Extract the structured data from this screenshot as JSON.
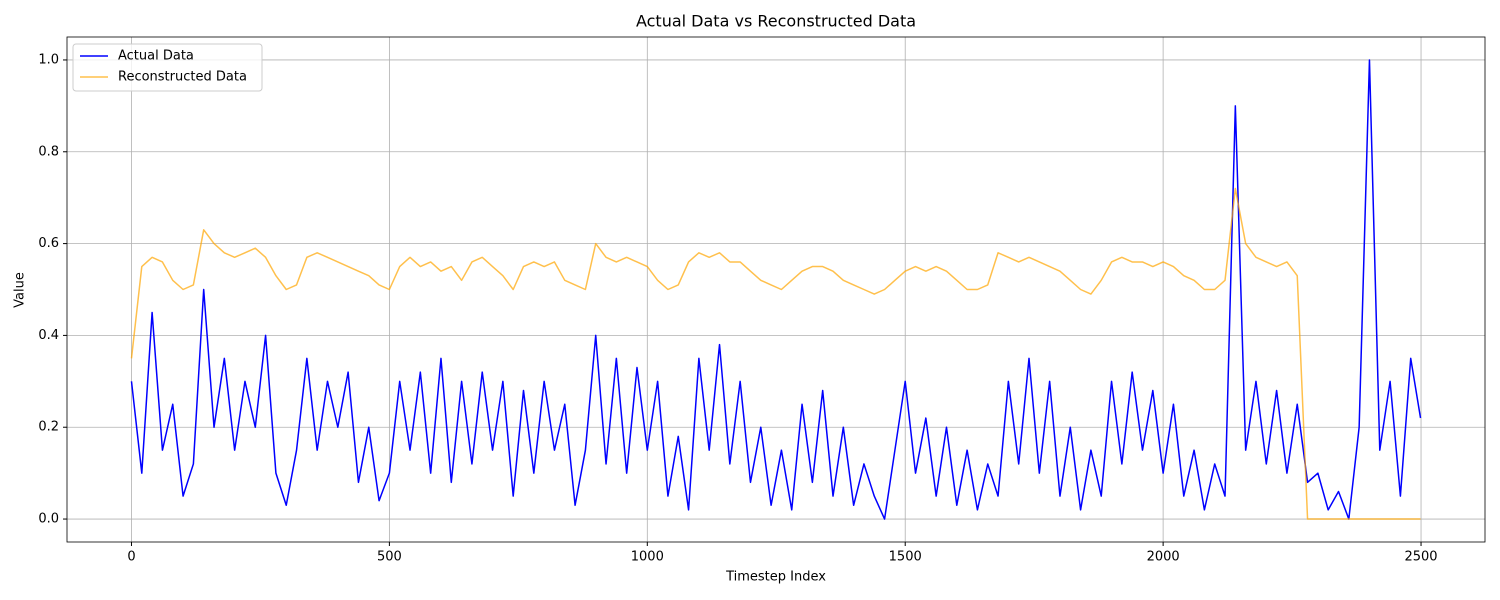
{
  "chart_data": {
    "type": "line",
    "title": "Actual Data vs Reconstructed Data",
    "x_label": "Timestep Index",
    "y_label": "Value",
    "x": [
      0,
      20,
      40,
      60,
      80,
      100,
      120,
      140,
      160,
      180,
      200,
      220,
      240,
      260,
      280,
      300,
      320,
      340,
      360,
      380,
      400,
      420,
      440,
      460,
      480,
      500,
      520,
      540,
      560,
      580,
      600,
      620,
      640,
      660,
      680,
      700,
      720,
      740,
      760,
      780,
      800,
      820,
      840,
      860,
      880,
      900,
      920,
      940,
      960,
      980,
      1000,
      1020,
      1040,
      1060,
      1080,
      1100,
      1120,
      1140,
      1160,
      1180,
      1200,
      1220,
      1240,
      1260,
      1280,
      1300,
      1320,
      1340,
      1360,
      1380,
      1400,
      1420,
      1440,
      1460,
      1480,
      1500,
      1520,
      1540,
      1560,
      1580,
      1600,
      1620,
      1640,
      1660,
      1680,
      1700,
      1720,
      1740,
      1760,
      1780,
      1800,
      1820,
      1840,
      1860,
      1880,
      1900,
      1920,
      1940,
      1960,
      1980,
      2000,
      2020,
      2040,
      2060,
      2080,
      2100,
      2120,
      2140,
      2160,
      2180,
      2200,
      2220,
      2240,
      2260,
      2280,
      2300,
      2320,
      2340,
      2360,
      2380,
      2400,
      2420,
      2440,
      2460,
      2480,
      2499
    ],
    "series": [
      {
        "name": "Actual Data",
        "color": "#0000ff",
        "opacity": 1,
        "values": [
          0.3,
          0.1,
          0.45,
          0.15,
          0.25,
          0.05,
          0.12,
          0.5,
          0.2,
          0.35,
          0.15,
          0.3,
          0.2,
          0.4,
          0.1,
          0.03,
          0.15,
          0.35,
          0.15,
          0.3,
          0.2,
          0.32,
          0.08,
          0.2,
          0.04,
          0.1,
          0.3,
          0.15,
          0.32,
          0.1,
          0.35,
          0.08,
          0.3,
          0.12,
          0.32,
          0.15,
          0.3,
          0.05,
          0.28,
          0.1,
          0.3,
          0.15,
          0.25,
          0.03,
          0.15,
          0.4,
          0.12,
          0.35,
          0.1,
          0.33,
          0.15,
          0.3,
          0.05,
          0.18,
          0.02,
          0.35,
          0.15,
          0.38,
          0.12,
          0.3,
          0.08,
          0.2,
          0.03,
          0.15,
          0.02,
          0.25,
          0.08,
          0.28,
          0.05,
          0.2,
          0.03,
          0.12,
          0.05,
          0,
          0.15,
          0.3,
          0.1,
          0.22,
          0.05,
          0.2,
          0.03,
          0.15,
          0.02,
          0.12,
          0.05,
          0.3,
          0.12,
          0.35,
          0.1,
          0.3,
          0.05,
          0.2,
          0.02,
          0.15,
          0.05,
          0.3,
          0.12,
          0.32,
          0.15,
          0.28,
          0.1,
          0.25,
          0.05,
          0.15,
          0.02,
          0.12,
          0.05,
          0.9,
          0.15,
          0.3,
          0.12,
          0.28,
          0.1,
          0.25,
          0.08,
          0.1,
          0.02,
          0.06,
          0,
          0.2,
          1.0,
          0.15,
          0.3,
          0.05,
          0.35,
          0.22
        ]
      },
      {
        "name": "Reconstructed Data",
        "color": "#ffa500",
        "opacity": 0.7,
        "values": [
          0.35,
          0.55,
          0.57,
          0.56,
          0.52,
          0.5,
          0.51,
          0.63,
          0.6,
          0.58,
          0.57,
          0.58,
          0.59,
          0.57,
          0.53,
          0.5,
          0.51,
          0.57,
          0.58,
          0.57,
          0.56,
          0.55,
          0.54,
          0.53,
          0.51,
          0.5,
          0.55,
          0.57,
          0.55,
          0.56,
          0.54,
          0.55,
          0.52,
          0.56,
          0.57,
          0.55,
          0.53,
          0.5,
          0.55,
          0.56,
          0.55,
          0.56,
          0.52,
          0.51,
          0.5,
          0.6,
          0.57,
          0.56,
          0.57,
          0.56,
          0.55,
          0.52,
          0.5,
          0.51,
          0.56,
          0.58,
          0.57,
          0.58,
          0.56,
          0.56,
          0.54,
          0.52,
          0.51,
          0.5,
          0.52,
          0.54,
          0.55,
          0.55,
          0.54,
          0.52,
          0.51,
          0.5,
          0.49,
          0.5,
          0.52,
          0.54,
          0.55,
          0.54,
          0.55,
          0.54,
          0.52,
          0.5,
          0.5,
          0.51,
          0.58,
          0.57,
          0.56,
          0.57,
          0.56,
          0.55,
          0.54,
          0.52,
          0.5,
          0.49,
          0.52,
          0.56,
          0.57,
          0.56,
          0.56,
          0.55,
          0.56,
          0.55,
          0.53,
          0.52,
          0.5,
          0.5,
          0.52,
          0.72,
          0.6,
          0.57,
          0.56,
          0.55,
          0.56,
          0.53,
          0,
          0,
          0,
          0,
          0,
          0,
          0,
          0,
          0,
          0,
          0,
          0
        ]
      }
    ],
    "xlim": [
      -125,
      2624
    ],
    "ylim": [
      -0.05,
      1.05
    ],
    "xticks": [
      0,
      500,
      1000,
      1500,
      2000,
      2500
    ],
    "yticks": [
      {
        "value": 0,
        "label": "0.0"
      },
      0.2,
      0.4,
      0.6,
      0.8,
      {
        "value": 1,
        "label": "1.0"
      }
    ],
    "grid": true,
    "legend": "upper left"
  }
}
